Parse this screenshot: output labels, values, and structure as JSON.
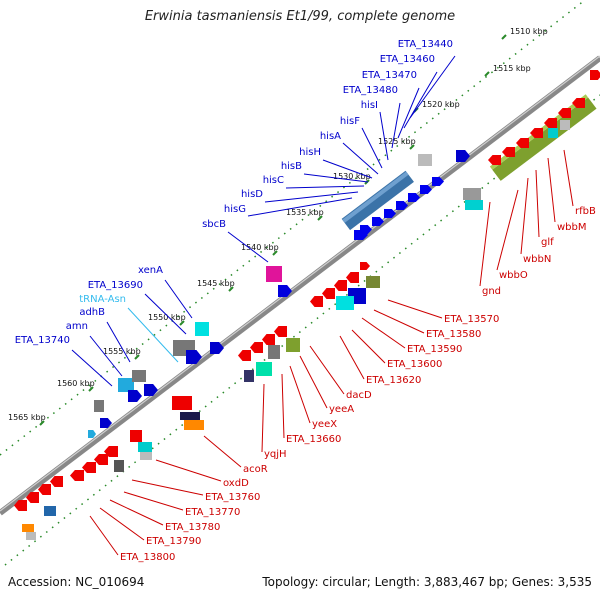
{
  "title": "Erwinia tasmaniensis Et1/99, complete genome",
  "footer": {
    "accession": "Accession: NC_010694",
    "topology": "Topology: circular; Length: 3,883,467 bp; Genes: 3,535"
  },
  "colors": {
    "forward_label": "#0000cc",
    "reverse_label": "#cc0000",
    "trna_label": "#33bbee",
    "backbone": "#888888",
    "dots": "#2a8a2a"
  },
  "ticks": [
    "1510 kbp",
    "1515 kbp",
    "1520 kbp",
    "1525 kbp",
    "1530 kbp",
    "1535 kbp",
    "1540 kbp",
    "1545 kbp",
    "1550 kbp",
    "1555 kbp",
    "1560 kbp",
    "1565 kbp"
  ],
  "forward_labels": [
    "ETA_13440",
    "ETA_13460",
    "ETA_13470",
    "ETA_13480",
    "hisI",
    "hisF",
    "hisA",
    "hisH",
    "hisB",
    "hisC",
    "hisD",
    "hisG",
    "sbcB",
    "xenA",
    "ETA_13690",
    "tRNA-Asn",
    "adhB",
    "amn",
    "ETA_13740"
  ],
  "reverse_labels": [
    "rfbB",
    "wbbM",
    "glf",
    "wbbN",
    "wbbO",
    "gnd",
    "ETA_13570",
    "ETA_13580",
    "ETA_13590",
    "ETA_13600",
    "ETA_13620",
    "dacD",
    "yeeA",
    "yeeX",
    "ETA_13660",
    "yqjH",
    "acoR",
    "oxdD",
    "ETA_13760",
    "ETA_13770",
    "ETA_13780",
    "ETA_13790",
    "ETA_13800"
  ]
}
